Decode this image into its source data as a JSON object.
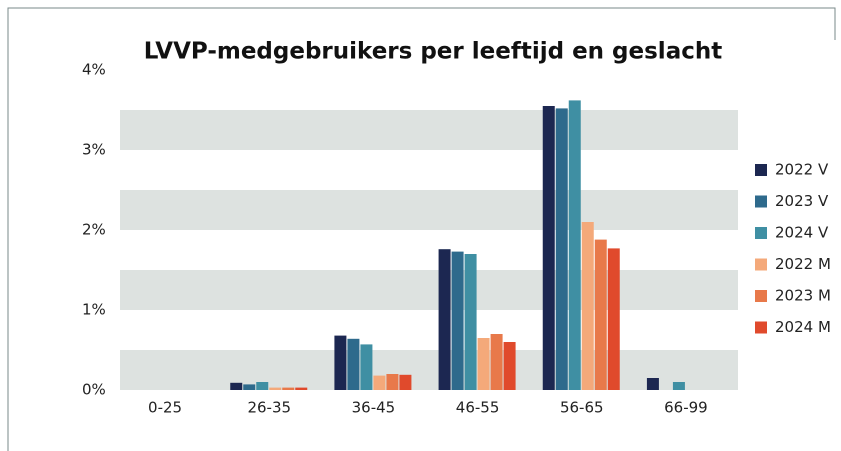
{
  "chart_data": {
    "type": "bar",
    "title": "LVVP-medgebruikers per leeftijd en geslacht",
    "categories": [
      "0-25",
      "26-35",
      "36-45",
      "46-55",
      "56-65",
      "66-99"
    ],
    "series": [
      {
        "name": "2022 V",
        "color": "#1c2751",
        "values": [
          0,
          0.09,
          0.68,
          1.76,
          3.55,
          0.15
        ]
      },
      {
        "name": "2023 V",
        "color": "#2e6a8c",
        "values": [
          0,
          0.07,
          0.64,
          1.73,
          3.52,
          0
        ]
      },
      {
        "name": "2024 V",
        "color": "#3f8fa3",
        "values": [
          0,
          0.1,
          0.57,
          1.7,
          3.62,
          0.1
        ]
      },
      {
        "name": "2022 M",
        "color": "#f4a97a",
        "values": [
          0,
          0.03,
          0.18,
          0.65,
          2.1,
          0
        ]
      },
      {
        "name": "2023 M",
        "color": "#e8794a",
        "values": [
          0,
          0.03,
          0.2,
          0.7,
          1.88,
          0
        ]
      },
      {
        "name": "2024 M",
        "color": "#e04a2c",
        "values": [
          0,
          0.03,
          0.19,
          0.6,
          1.77,
          0
        ]
      }
    ],
    "ylim": [
      0,
      4
    ],
    "yticks": [
      {
        "value": 0,
        "label": "0%"
      },
      {
        "value": 1,
        "label": "1%"
      },
      {
        "value": 2,
        "label": "2%"
      },
      {
        "value": 3,
        "label": "3%"
      },
      {
        "value": 4,
        "label": "4%"
      }
    ],
    "grid": true,
    "legend": "right"
  }
}
